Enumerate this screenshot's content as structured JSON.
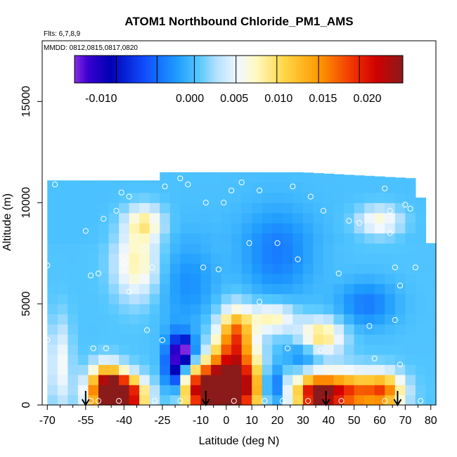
{
  "chart_data": {
    "type": "heatmap",
    "title": "ATOM1 Northbound Chloride_PM1_AMS",
    "flights_label": "Flts: 6,7,8,9",
    "dates_label": "MMDD: 0812,0815,0817,0820",
    "xlabel": "Latitude (deg N)",
    "ylabel": "Altitude (m)",
    "xlim": [
      -72,
      82
    ],
    "ylim": [
      0,
      18000
    ],
    "x_ticks": [
      -70,
      -55,
      -40,
      -25,
      -10,
      0,
      10,
      20,
      30,
      40,
      50,
      60,
      70,
      80
    ],
    "x_tick_labels": [
      "-70",
      "-55",
      "-40",
      "-25",
      "-10",
      "0",
      "10",
      "20",
      "30",
      "40",
      "50",
      "60",
      "70",
      "80"
    ],
    "x_minor_ticks": [
      -65,
      -60,
      -50,
      -45,
      -35,
      -30,
      -20,
      -15,
      -5,
      5,
      15,
      25,
      35,
      45,
      55,
      65,
      75
    ],
    "y_ticks": [
      0,
      5000,
      10000,
      15000
    ],
    "y_tick_labels": [
      "0",
      "5000",
      "10000",
      "15000"
    ],
    "colorbar": {
      "range": [
        -0.013,
        0.024
      ],
      "tick_values": [
        -0.01,
        0.0,
        0.005,
        0.01,
        0.015,
        0.02
      ],
      "tick_labels": [
        "-0.010",
        "0.000",
        "0.005",
        "0.010",
        "0.015",
        "0.020"
      ],
      "separators": [
        -0.013,
        -0.0083,
        -0.0037,
        0.0005,
        0.0052,
        0.0098,
        0.0145,
        0.0191,
        0.024
      ],
      "color_stops": [
        {
          "v": -0.013,
          "c": "#8a2be2"
        },
        {
          "v": -0.0115,
          "c": "#3a00d0"
        },
        {
          "v": -0.009,
          "c": "#0000b4"
        },
        {
          "v": -0.005,
          "c": "#1050ff"
        },
        {
          "v": -0.0015,
          "c": "#1e9bff"
        },
        {
          "v": 0.001,
          "c": "#55c8ff"
        },
        {
          "v": 0.003,
          "c": "#b4e0ff"
        },
        {
          "v": 0.0055,
          "c": "#f2f8ff"
        },
        {
          "v": 0.0075,
          "c": "#fff9c0"
        },
        {
          "v": 0.0105,
          "c": "#ffd84a"
        },
        {
          "v": 0.0145,
          "c": "#ff9a00"
        },
        {
          "v": 0.0185,
          "c": "#f03000"
        },
        {
          "v": 0.021,
          "c": "#d00000"
        },
        {
          "v": 0.024,
          "c": "#8b1a1a"
        }
      ]
    },
    "grid_x": [
      -68,
      -64,
      -60,
      -56,
      -52,
      -48,
      -44,
      -40,
      -36,
      -32,
      -28,
      -24,
      -20,
      -16,
      -12,
      -8,
      -4,
      0,
      4,
      8,
      12,
      16,
      20,
      24,
      28,
      32,
      36,
      40,
      44,
      48,
      52,
      56,
      60,
      64,
      68,
      72,
      76,
      80
    ],
    "grid_y": [
      250,
      750,
      1250,
      1750,
      2250,
      2750,
      3250,
      3750,
      4250,
      4750,
      5250,
      5750,
      6250,
      6750,
      7250,
      7750,
      8250,
      8750,
      9250,
      9750,
      10250,
      10750,
      11250
    ],
    "data_extent_top": [
      {
        "x": -70,
        "top": 11100
      },
      {
        "x": -28,
        "top": 11100
      },
      {
        "x": -27,
        "top": 11500
      },
      {
        "x": 28,
        "top": 11500
      },
      {
        "x": 29,
        "top": 12000
      },
      {
        "x": 30,
        "top": 11500
      },
      {
        "x": 74,
        "top": 11200
      },
      {
        "x": 75,
        "top": 10500
      },
      {
        "x": 77,
        "top": 10000
      },
      {
        "x": 78,
        "top": 9500
      },
      {
        "x": 80,
        "top": 8000
      },
      {
        "x": 81,
        "top": 0
      }
    ],
    "features": [
      {
        "x": -45,
        "y": 600,
        "sx": 6,
        "sy": 700,
        "v": 0.022
      },
      {
        "x": -40,
        "y": 400,
        "sx": 6,
        "sy": 600,
        "v": 0.018
      },
      {
        "x": -47,
        "y": 1400,
        "sx": 4,
        "sy": 600,
        "v": 0.008
      },
      {
        "x": -10,
        "y": 800,
        "sx": 6,
        "sy": 900,
        "v": 0.018
      },
      {
        "x": 2,
        "y": 700,
        "sx": 8,
        "sy": 1000,
        "v": 0.022
      },
      {
        "x": 3,
        "y": 2200,
        "sx": 6,
        "sy": 1300,
        "v": 0.014
      },
      {
        "x": 4,
        "y": 3700,
        "sx": 4,
        "sy": 800,
        "v": 0.01
      },
      {
        "x": 45,
        "y": 600,
        "sx": 11,
        "sy": 700,
        "v": 0.019
      },
      {
        "x": 35,
        "y": 500,
        "sx": 5,
        "sy": 600,
        "v": 0.014
      },
      {
        "x": 62,
        "y": 700,
        "sx": 5,
        "sy": 600,
        "v": 0.012
      },
      {
        "x": 37,
        "y": 3400,
        "sx": 6,
        "sy": 600,
        "v": 0.01
      },
      {
        "x": 18,
        "y": 4300,
        "sx": 6,
        "sy": 500,
        "v": 0.008
      },
      {
        "x": -35,
        "y": 7000,
        "sx": 6,
        "sy": 1200,
        "v": 0.008
      },
      {
        "x": -32,
        "y": 9000,
        "sx": 5,
        "sy": 600,
        "v": 0.008
      },
      {
        "x": 60,
        "y": 9100,
        "sx": 6,
        "sy": 500,
        "v": 0.007
      },
      {
        "x": -65,
        "y": 2000,
        "sx": 3,
        "sy": 1500,
        "v": 0.006
      },
      {
        "x": -20,
        "y": 1900,
        "sx": 3,
        "sy": 1000,
        "v": -0.011
      },
      {
        "x": -17,
        "y": 2700,
        "sx": 2,
        "sy": 500,
        "v": -0.01
      },
      {
        "x": 18,
        "y": 900,
        "sx": 2,
        "sy": 700,
        "v": -0.01
      },
      {
        "x": -12,
        "y": 2400,
        "sx": 3,
        "sy": 700,
        "v": -0.004
      },
      {
        "x": 30,
        "y": 2500,
        "sx": 5,
        "sy": 500,
        "v": -0.003
      },
      {
        "x": 20,
        "y": 7500,
        "sx": 10,
        "sy": 1500,
        "v": -0.003
      },
      {
        "x": 55,
        "y": 5000,
        "sx": 8,
        "sy": 800,
        "v": -0.003
      },
      {
        "x": -15,
        "y": 6000,
        "sx": 8,
        "sy": 1500,
        "v": -0.002
      }
    ],
    "background_value": 0.0008,
    "background_high_alt_value": 0.0006,
    "sample_points": [
      [
        -67,
        10900
      ],
      [
        -70,
        6900
      ],
      [
        -70,
        3200
      ],
      [
        -55,
        8600
      ],
      [
        -53,
        6400
      ],
      [
        -50,
        6500
      ],
      [
        -48,
        9200
      ],
      [
        -43,
        9600
      ],
      [
        -40,
        7000
      ],
      [
        -41,
        10500
      ],
      [
        -38,
        10300
      ],
      [
        -38,
        5600
      ],
      [
        -29,
        6800
      ],
      [
        -31,
        3700
      ],
      [
        -24,
        10800
      ],
      [
        -18,
        11200
      ],
      [
        -15,
        10900
      ],
      [
        -9,
        6800
      ],
      [
        -8,
        10000
      ],
      [
        -1,
        10000
      ],
      [
        -3,
        6700
      ],
      [
        2,
        10600
      ],
      [
        4,
        4700
      ],
      [
        6,
        11000
      ],
      [
        9,
        8000
      ],
      [
        13,
        5100
      ],
      [
        13,
        10600
      ],
      [
        20,
        8000
      ],
      [
        24,
        2800
      ],
      [
        26,
        10800
      ],
      [
        28,
        7200
      ],
      [
        33,
        10300
      ],
      [
        37,
        2700
      ],
      [
        38,
        9600
      ],
      [
        44,
        6500
      ],
      [
        48,
        9100
      ],
      [
        52,
        9000
      ],
      [
        56,
        3900
      ],
      [
        58,
        2300
      ],
      [
        62,
        10700
      ],
      [
        64,
        9600
      ],
      [
        64,
        8500
      ],
      [
        66,
        6800
      ],
      [
        66,
        4200
      ],
      [
        68,
        5900
      ],
      [
        68,
        2000
      ],
      [
        70,
        9900
      ],
      [
        72,
        9700
      ],
      [
        74,
        6800
      ],
      [
        -52,
        2800
      ],
      [
        -47,
        2800
      ],
      [
        -25,
        3200
      ],
      [
        -18,
        200
      ],
      [
        -28,
        200
      ],
      [
        -42,
        200
      ],
      [
        -50,
        200
      ],
      [
        -53,
        200
      ],
      [
        3,
        200
      ],
      [
        15,
        200
      ],
      [
        22,
        200
      ],
      [
        32,
        200
      ],
      [
        45,
        200
      ],
      [
        62,
        200
      ],
      [
        76,
        200
      ]
    ],
    "arrows_x": [
      -55,
      -8,
      39,
      67
    ]
  }
}
